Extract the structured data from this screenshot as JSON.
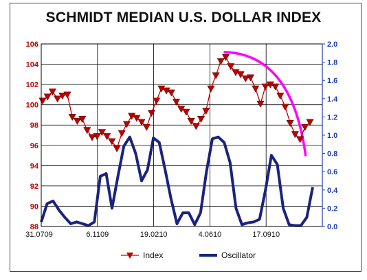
{
  "title": "SCHMIDT MEDIAN U.S. DOLLAR INDEX",
  "colors": {
    "index": "#c00000",
    "oscillator": "#1a237e",
    "trend": "#ff00ff",
    "left_axis": "#c00000",
    "right_axis": "#1f3bb3",
    "grid": "#000000"
  },
  "chart_data": {
    "type": "line",
    "title": "SCHMIDT MEDIAN U.S. DOLLAR INDEX",
    "x_tick_labels": [
      "31.0709",
      "6.1109",
      "19.0210",
      "4.0610",
      "17.0910"
    ],
    "left_axis": {
      "ylim": [
        88,
        106
      ],
      "ticks": [
        "88",
        "90",
        "92",
        "94",
        "96",
        "98",
        "100",
        "102",
        "104",
        "106"
      ]
    },
    "right_axis": {
      "ylim": [
        0.0,
        2.0
      ],
      "ticks": [
        "0.0",
        "0.2",
        "0.4",
        "0.6",
        "0.8",
        "1.0",
        "1.2",
        "1.4",
        "1.6",
        "1.8",
        "2.0"
      ]
    },
    "grid": true,
    "legend": {
      "placement": "bottom"
    },
    "series": [
      {
        "name": "Index",
        "axis": "left",
        "marker": "triangle-down",
        "values": [
          100.4,
          100.8,
          101.3,
          100.6,
          100.9,
          101.0,
          98.8,
          98.4,
          98.6,
          97.5,
          96.8,
          96.9,
          97.3,
          96.9,
          96.4,
          95.7,
          97.2,
          98.1,
          98.9,
          98.7,
          98.3,
          97.8,
          99.2,
          100.4,
          101.6,
          101.4,
          101.2,
          100.3,
          99.6,
          99.3,
          98.4,
          97.9,
          98.6,
          99.4,
          101.6,
          102.9,
          104.3,
          104.7,
          103.8,
          103.2,
          103.0,
          102.6,
          102.7,
          101.6,
          100.1,
          101.8,
          102.0,
          101.8,
          100.9,
          99.8,
          98.2,
          97.1,
          96.6,
          97.8,
          98.3
        ]
      },
      {
        "name": "Oscillator",
        "axis": "right",
        "values": [
          0.05,
          0.25,
          0.28,
          0.18,
          0.1,
          0.03,
          0.05,
          0.03,
          0.01,
          0.05,
          0.55,
          0.58,
          0.2,
          0.55,
          0.88,
          0.98,
          0.8,
          0.5,
          0.62,
          0.97,
          0.92,
          0.62,
          0.3,
          0.03,
          0.15,
          0.15,
          0.02,
          0.15,
          0.6,
          0.96,
          0.98,
          0.92,
          0.7,
          0.2,
          0.02,
          0.04,
          0.05,
          0.08,
          0.4,
          0.78,
          0.68,
          0.2,
          0.02,
          0.01,
          0.01,
          0.1,
          0.43
        ]
      }
    ],
    "annotation": {
      "type": "magenta-downtrend-curve",
      "from_index_value": 105.2,
      "to_index_value": 96.3
    }
  },
  "legend": {
    "items": [
      "Index",
      "Oscillator"
    ]
  }
}
